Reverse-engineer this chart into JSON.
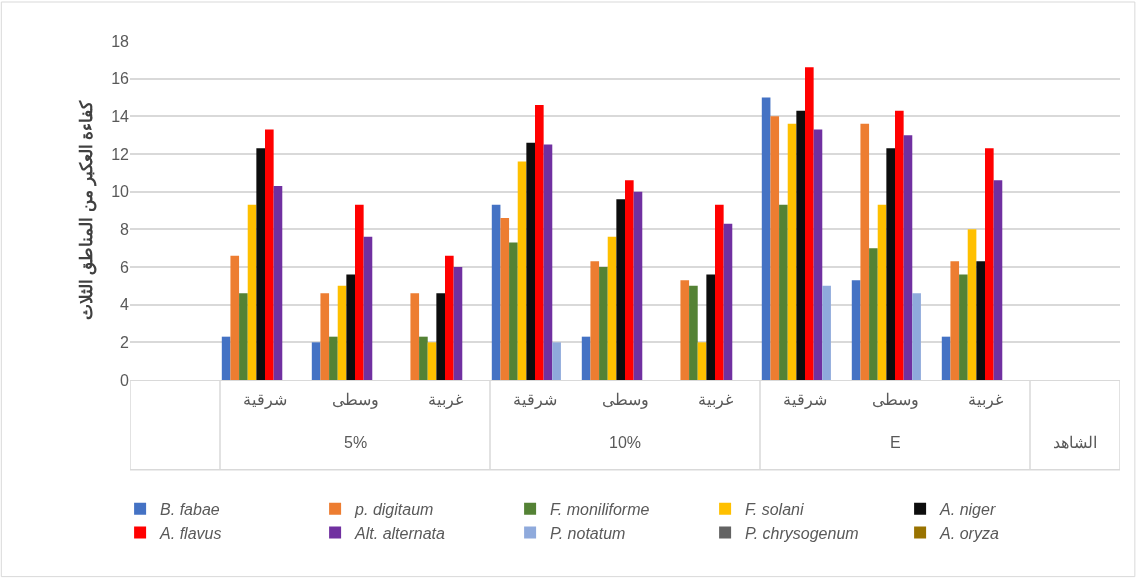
{
  "chart_data": {
    "type": "bar",
    "ylabel": "كفاءة العكبر من المناطق الثلاث",
    "categories": [
      null,
      "شرقية",
      "وسطى",
      "غربية",
      "شرقية",
      "وسطى",
      "غربية",
      "شرقية",
      "وسطى",
      "غربية",
      null
    ],
    "annotations": [
      "5%",
      "10%",
      "E",
      "الشاهد"
    ],
    "series": [
      {
        "name": "B. fabae",
        "color": "#4472c4",
        "values": [
          null,
          2.3,
          2.0,
          null,
          9.3,
          2.3,
          null,
          15.0,
          5.3,
          2.3,
          null
        ]
      },
      {
        "name": "p. digitaum",
        "color": "#ed7d31",
        "values": [
          null,
          6.6,
          4.6,
          4.6,
          8.6,
          6.3,
          5.3,
          14.0,
          13.6,
          6.3,
          null
        ]
      },
      {
        "name": "F. moniliforme",
        "color": "#548235",
        "values": [
          null,
          4.6,
          2.3,
          2.3,
          7.3,
          6.0,
          5.0,
          9.3,
          7.0,
          5.6,
          null
        ]
      },
      {
        "name": "F. solani",
        "color": "#ffc000",
        "values": [
          null,
          9.3,
          5.0,
          2.0,
          11.6,
          7.6,
          2.0,
          13.6,
          9.3,
          8.0,
          null
        ]
      },
      {
        "name": "A. niger",
        "color": "#0d0d0d",
        "values": [
          null,
          12.3,
          5.6,
          4.6,
          12.6,
          9.6,
          5.6,
          14.3,
          12.3,
          6.3,
          null
        ]
      },
      {
        "name": "A. flavus",
        "color": "#ff0000",
        "values": [
          null,
          13.3,
          9.3,
          6.6,
          14.6,
          10.6,
          9.3,
          16.6,
          14.3,
          12.3,
          null
        ]
      },
      {
        "name": "Alt. alternata",
        "color": "#7030a0",
        "values": [
          null,
          10.3,
          7.6,
          6.0,
          12.5,
          10.0,
          8.3,
          13.3,
          13.0,
          10.6,
          null
        ]
      },
      {
        "name": "P. notatum",
        "color": "#8faadc",
        "values": [
          null,
          null,
          null,
          null,
          2.0,
          null,
          null,
          5.0,
          4.6,
          null,
          null
        ]
      },
      {
        "name": "P. chrysogenum",
        "color": "#636363",
        "values": [
          null,
          null,
          null,
          null,
          null,
          null,
          null,
          null,
          null,
          null,
          null
        ]
      },
      {
        "name": "A. oryza",
        "color": "#997300",
        "values": [
          null,
          null,
          null,
          null,
          null,
          null,
          null,
          null,
          null,
          null,
          null
        ]
      }
    ],
    "ylim": [
      0,
      18
    ],
    "yticks": [
      0,
      2,
      4,
      6,
      8,
      10,
      12,
      14,
      16,
      18
    ],
    "grid": "y",
    "legend": "bottom"
  }
}
